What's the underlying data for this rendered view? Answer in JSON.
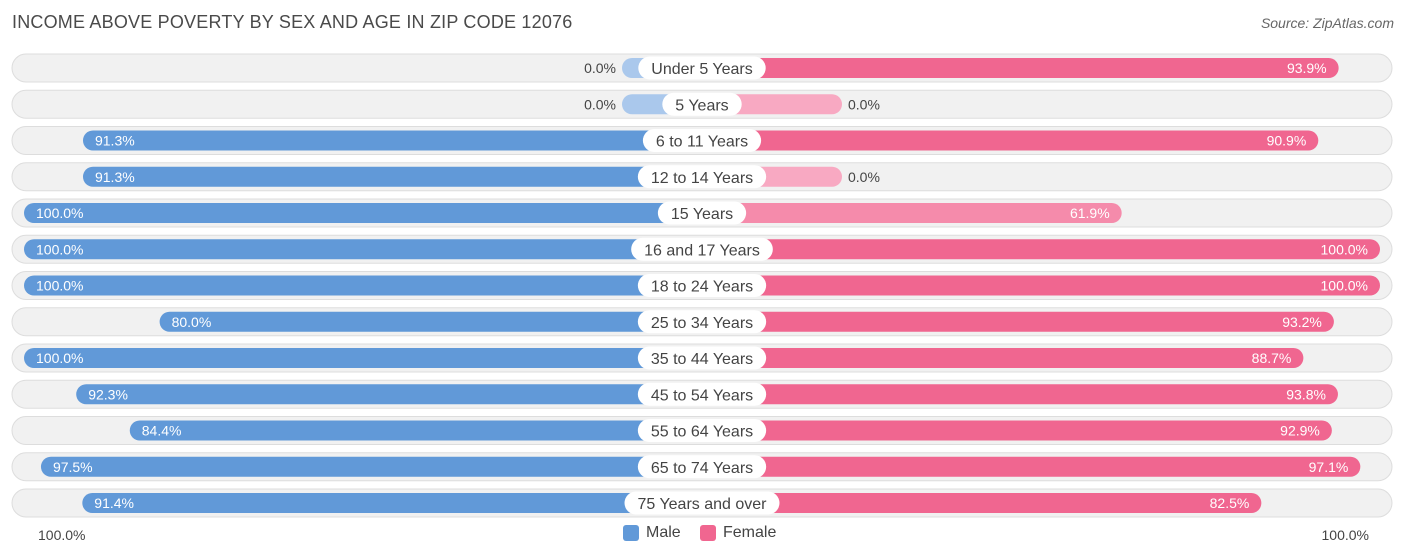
{
  "title": "INCOME ABOVE POVERTY BY SEX AND AGE IN ZIP CODE 12076",
  "source": "Source: ZipAtlas.com",
  "colors": {
    "male_strong": "#6199d8",
    "male_light": "#aac8ec",
    "female_strong": "#f06690",
    "female_light": "#f8a9c2",
    "row_bg": "#f1f1f1",
    "row_border": "#dddddd"
  },
  "legend": {
    "male_label": "Male",
    "female_label": "Female"
  },
  "axis": {
    "left_label": "100.0%",
    "right_label": "100.0%"
  },
  "chart_data": {
    "type": "bar",
    "orientation": "diverging-horizontal",
    "categories": [
      "Under 5 Years",
      "5 Years",
      "6 to 11 Years",
      "12 to 14 Years",
      "15 Years",
      "16 and 17 Years",
      "18 to 24 Years",
      "25 to 34 Years",
      "35 to 44 Years",
      "45 to 54 Years",
      "55 to 64 Years",
      "65 to 74 Years",
      "75 Years and over"
    ],
    "series": [
      {
        "name": "Male",
        "values": [
          0.0,
          0.0,
          91.3,
          91.3,
          100.0,
          100.0,
          100.0,
          80.0,
          100.0,
          92.3,
          84.4,
          97.5,
          91.4
        ],
        "labels": [
          "0.0%",
          "0.0%",
          "91.3%",
          "91.3%",
          "100.0%",
          "100.0%",
          "100.0%",
          "80.0%",
          "100.0%",
          "92.3%",
          "84.4%",
          "97.5%",
          "91.4%"
        ]
      },
      {
        "name": "Female",
        "values": [
          93.9,
          0.0,
          90.9,
          0.0,
          61.9,
          100.0,
          100.0,
          93.2,
          88.7,
          93.8,
          92.9,
          97.1,
          82.5
        ],
        "labels": [
          "93.9%",
          "0.0%",
          "90.9%",
          "0.0%",
          "61.9%",
          "100.0%",
          "100.0%",
          "93.2%",
          "88.7%",
          "93.8%",
          "92.9%",
          "97.1%",
          "82.5%"
        ]
      }
    ],
    "xlim": [
      0,
      100
    ],
    "legend_position": "bottom-center"
  }
}
